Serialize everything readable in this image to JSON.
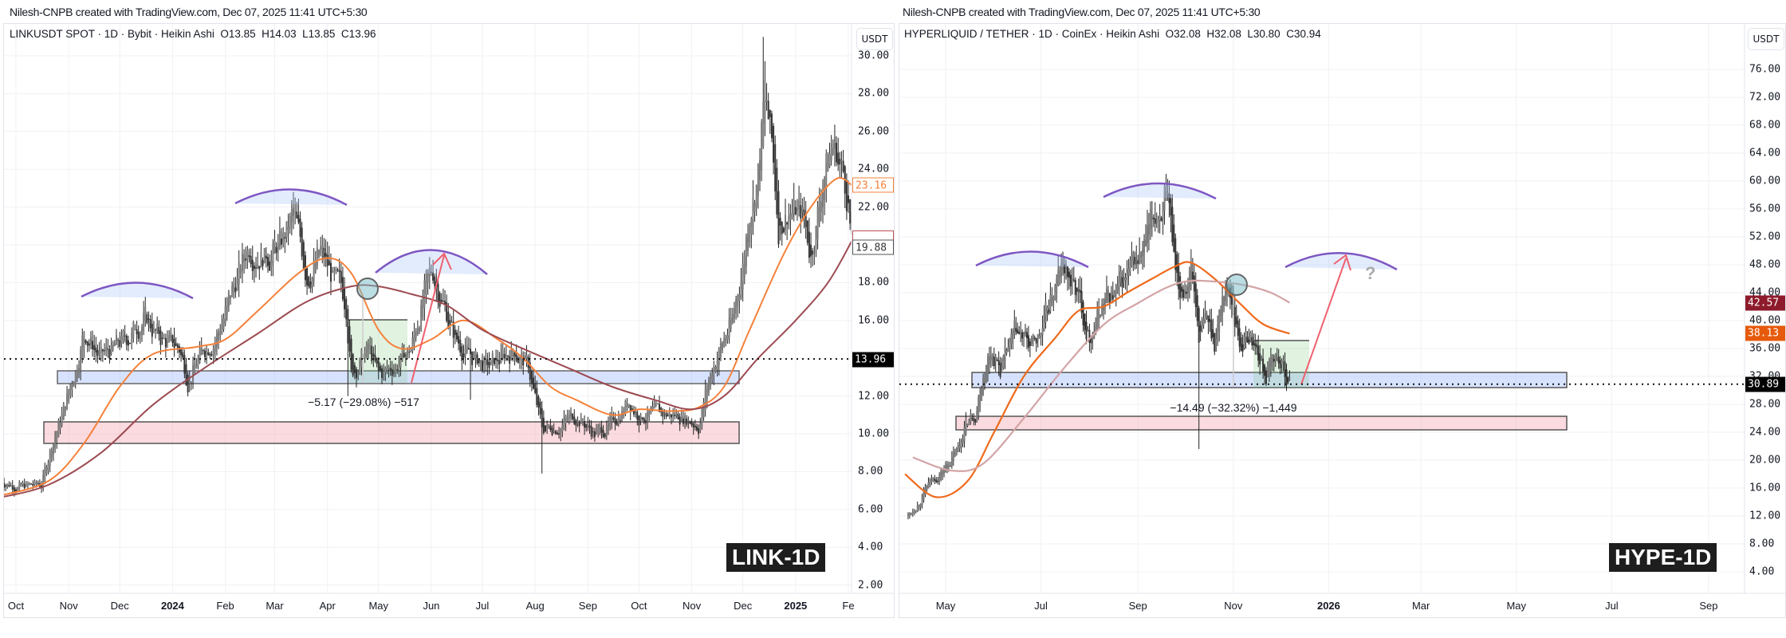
{
  "credit": "Nilesh-CNPB created with TradingView.com, Dec 07, 2025 11:41 UTC+5:30",
  "currency_button": "USDT",
  "chart_data": [
    {
      "type": "candlestick",
      "title": "LINKUSDT SPOT · 1D · Bybit · Heikin Ashi  O13.85  H14.03  L13.85  C13.96",
      "tag": "LINK-1D",
      "y_ticks": [
        "2.00",
        "4.00",
        "6.00",
        "8.00",
        "10.00",
        "12.00",
        "14.00",
        "16.00",
        "18.00",
        "20.00",
        "22.00",
        "24.00",
        "26.00",
        "28.00",
        "30.00"
      ],
      "y_tick_values": [
        2,
        4,
        6,
        8,
        10,
        12,
        14,
        16,
        18,
        20,
        22,
        24,
        26,
        28,
        30
      ],
      "ylim": [
        2,
        30
      ],
      "x_ticks": [
        {
          "label": "Oct",
          "date": "2023-10-01"
        },
        {
          "label": "Nov",
          "date": "2023-11-01"
        },
        {
          "label": "Dec",
          "date": "2023-12-01"
        },
        {
          "label": "2024",
          "date": "2024-01-01"
        },
        {
          "label": "Feb",
          "date": "2024-02-01"
        },
        {
          "label": "Mar",
          "date": "2024-03-01"
        },
        {
          "label": "Apr",
          "date": "2024-04-01"
        },
        {
          "label": "May",
          "date": "2024-05-01"
        },
        {
          "label": "Jun",
          "date": "2024-06-01"
        },
        {
          "label": "Jul",
          "date": "2024-07-01"
        },
        {
          "label": "Aug",
          "date": "2024-08-01"
        },
        {
          "label": "Sep",
          "date": "2024-09-01"
        },
        {
          "label": "Oct",
          "date": "2024-10-01"
        },
        {
          "label": "Nov",
          "date": "2024-11-01"
        },
        {
          "label": "Dec",
          "date": "2024-12-01"
        },
        {
          "label": "2025",
          "date": "2025-01-01"
        },
        {
          "label": "Fe",
          "date": "2025-02-01"
        }
      ],
      "close_path": [
        [
          "2023-09-22",
          7.5
        ],
        [
          "2023-10-05",
          7.2
        ],
        [
          "2023-10-16",
          7.3
        ],
        [
          "2023-10-22",
          9.5
        ],
        [
          "2023-10-28",
          11
        ],
        [
          "2023-11-05",
          13.5
        ],
        [
          "2023-11-10",
          15.5
        ],
        [
          "2023-11-20",
          14
        ],
        [
          "2023-12-05",
          15
        ],
        [
          "2023-12-15",
          16.2
        ],
        [
          "2023-12-25",
          15
        ],
        [
          "2024-01-05",
          14.5
        ],
        [
          "2024-01-10",
          13.0
        ],
        [
          "2024-01-20",
          14.5
        ],
        [
          "2024-01-28",
          15.5
        ],
        [
          "2024-02-05",
          17.5
        ],
        [
          "2024-02-15",
          20
        ],
        [
          "2024-02-25",
          19.5
        ],
        [
          "2024-03-05",
          20
        ],
        [
          "2024-03-12",
          21.5
        ],
        [
          "2024-03-20",
          18.5
        ],
        [
          "2024-03-28",
          19.5
        ],
        [
          "2024-04-05",
          18
        ],
        [
          "2024-04-12",
          17
        ],
        [
          "2024-04-15",
          13.2
        ],
        [
          "2024-04-25",
          14.5
        ],
        [
          "2024-05-01",
          13
        ],
        [
          "2024-05-10",
          13.6
        ],
        [
          "2024-05-20",
          14.5
        ],
        [
          "2024-05-28",
          17.5
        ],
        [
          "2024-06-02",
          18.5
        ],
        [
          "2024-06-08",
          17
        ],
        [
          "2024-06-15",
          15
        ],
        [
          "2024-06-25",
          14
        ],
        [
          "2024-07-05",
          13.5
        ],
        [
          "2024-07-20",
          14.5
        ],
        [
          "2024-07-28",
          13.5
        ],
        [
          "2024-08-05",
          10.2
        ],
        [
          "2024-08-15",
          10.5
        ],
        [
          "2024-08-25",
          11
        ],
        [
          "2024-09-05",
          10
        ],
        [
          "2024-09-15",
          10.5
        ],
        [
          "2024-09-25",
          11.8
        ],
        [
          "2024-10-01",
          11
        ],
        [
          "2024-10-15",
          11
        ],
        [
          "2024-10-25",
          11
        ],
        [
          "2024-11-05",
          10.5
        ],
        [
          "2024-11-10",
          12.5
        ],
        [
          "2024-11-15",
          14
        ],
        [
          "2024-11-25",
          16
        ],
        [
          "2024-12-01",
          19
        ],
        [
          "2024-12-05",
          22
        ],
        [
          "2024-12-10",
          24
        ],
        [
          "2024-12-14",
          28
        ],
        [
          "2024-12-18",
          25
        ],
        [
          "2024-12-22",
          21
        ],
        [
          "2024-12-28",
          22
        ],
        [
          "2025-01-05",
          21.5
        ],
        [
          "2025-01-10",
          19.5
        ],
        [
          "2025-01-18",
          24
        ],
        [
          "2025-01-23",
          25.5
        ],
        [
          "2025-01-28",
          24
        ],
        [
          "2025-02-01",
          22.5
        ],
        [
          "2025-02-03",
          19.88
        ]
      ],
      "wick_lows": [
        [
          "2024-04-13",
          12.0
        ],
        [
          "2024-08-05",
          7.9
        ],
        [
          "2024-06-24",
          11.8
        ]
      ],
      "wick_highs": [
        [
          "2024-03-12",
          22.8
        ],
        [
          "2024-12-13",
          31.0
        ]
      ],
      "volatility": 0.045,
      "series": [
        {
          "name": "MA fast",
          "color": "#f5813a",
          "last": "23.16",
          "points": [
            [
              "2023-09-20",
              6.7
            ],
            [
              "2023-10-20",
              7.5
            ],
            [
              "2023-11-10",
              9.5
            ],
            [
              "2023-12-01",
              12.5
            ],
            [
              "2023-12-20",
              14.2
            ],
            [
              "2024-01-15",
              14.6
            ],
            [
              "2024-02-01",
              15
            ],
            [
              "2024-02-20",
              16.5
            ],
            [
              "2024-03-15",
              18.5
            ],
            [
              "2024-04-01",
              19.3
            ],
            [
              "2024-04-15",
              18.5
            ],
            [
              "2024-05-01",
              15.5
            ],
            [
              "2024-05-15",
              14.5
            ],
            [
              "2024-06-01",
              15
            ],
            [
              "2024-06-20",
              16
            ],
            [
              "2024-07-10",
              15
            ],
            [
              "2024-07-25",
              14
            ],
            [
              "2024-08-10",
              12.5
            ],
            [
              "2024-08-25",
              11.8
            ],
            [
              "2024-09-15",
              11
            ],
            [
              "2024-10-01",
              11.3
            ],
            [
              "2024-10-20",
              11.2
            ],
            [
              "2024-11-05",
              11.4
            ],
            [
              "2024-11-20",
              12.5
            ],
            [
              "2024-12-05",
              15.5
            ],
            [
              "2024-12-25",
              19.5
            ],
            [
              "2025-01-10",
              22
            ],
            [
              "2025-01-25",
              23.5
            ],
            [
              "2025-02-03",
              23.16
            ]
          ]
        },
        {
          "name": "MA slow",
          "color": "#9c4a50",
          "last": "",
          "points": [
            [
              "2023-09-20",
              6.6
            ],
            [
              "2023-10-20",
              7.3
            ],
            [
              "2023-11-20",
              9.0
            ],
            [
              "2023-12-20",
              11.5
            ],
            [
              "2024-01-20",
              13.5
            ],
            [
              "2024-02-20",
              15.3
            ],
            [
              "2024-03-20",
              17
            ],
            [
              "2024-04-15",
              17.8
            ],
            [
              "2024-05-01",
              17.8
            ],
            [
              "2024-05-20",
              17.4
            ],
            [
              "2024-06-10",
              16.8
            ],
            [
              "2024-07-01",
              15.5
            ],
            [
              "2024-07-25",
              14.5
            ],
            [
              "2024-08-20",
              13.5
            ],
            [
              "2024-09-15",
              12.5
            ],
            [
              "2024-10-10",
              11.8
            ],
            [
              "2024-11-01",
              11.3
            ],
            [
              "2024-11-20",
              12
            ],
            [
              "2024-12-10",
              14
            ],
            [
              "2025-01-01",
              16
            ],
            [
              "2025-01-20",
              18
            ],
            [
              "2025-02-03",
              20.2
            ]
          ]
        }
      ],
      "last_price": "13.96",
      "last_bar_label": "19.88",
      "measure": "−5.17 (−29.08%) −517"
    },
    {
      "type": "candlestick",
      "title": "HYPERLIQUID / TETHER · 1D · CoinEx · Heikin Ashi  O32.08  H32.08  L30.80  C30.94",
      "tag": "HYPE-1D",
      "y_ticks": [
        "4.00",
        "8.00",
        "12.00",
        "16.00",
        "20.00",
        "24.00",
        "28.00",
        "32.00",
        "36.00",
        "40.00",
        "44.00",
        "48.00",
        "52.00",
        "56.00",
        "60.00",
        "64.00",
        "68.00",
        "72.00",
        "76.00"
      ],
      "y_tick_values": [
        4,
        8,
        12,
        16,
        20,
        24,
        28,
        32,
        36,
        40,
        44,
        48,
        52,
        56,
        60,
        64,
        68,
        72,
        76
      ],
      "ylim": [
        4,
        76
      ],
      "x_ticks": [
        {
          "label": "May",
          "date": "2025-05-01"
        },
        {
          "label": "Jul",
          "date": "2025-07-01"
        },
        {
          "label": "Sep",
          "date": "2025-09-01"
        },
        {
          "label": "Nov",
          "date": "2025-11-01"
        },
        {
          "label": "2026",
          "date": "2026-01-01"
        },
        {
          "label": "Mar",
          "date": "2026-03-01"
        },
        {
          "label": "May",
          "date": "2026-05-01"
        },
        {
          "label": "Jul",
          "date": "2026-07-01"
        },
        {
          "label": "Sep",
          "date": "2026-09-01"
        }
      ],
      "close_path": [
        [
          "2025-04-07",
          12
        ],
        [
          "2025-04-12",
          13.5
        ],
        [
          "2025-04-20",
          16.5
        ],
        [
          "2025-05-01",
          19
        ],
        [
          "2025-05-10",
          22
        ],
        [
          "2025-05-13",
          25
        ],
        [
          "2025-05-20",
          27
        ],
        [
          "2025-05-25",
          33
        ],
        [
          "2025-05-30",
          36
        ],
        [
          "2025-06-05",
          33
        ],
        [
          "2025-06-15",
          38
        ],
        [
          "2025-06-25",
          36
        ],
        [
          "2025-07-01",
          38
        ],
        [
          "2025-07-10",
          45
        ],
        [
          "2025-07-15",
          47.5
        ],
        [
          "2025-07-25",
          43
        ],
        [
          "2025-08-01",
          38
        ],
        [
          "2025-08-10",
          43
        ],
        [
          "2025-08-20",
          44
        ],
        [
          "2025-08-28",
          47
        ],
        [
          "2025-09-05",
          50
        ],
        [
          "2025-09-12",
          55
        ],
        [
          "2025-09-18",
          57.5
        ],
        [
          "2025-09-22",
          52
        ],
        [
          "2025-09-28",
          45
        ],
        [
          "2025-10-05",
          48
        ],
        [
          "2025-10-10",
          38
        ],
        [
          "2025-10-15",
          40
        ],
        [
          "2025-10-20",
          37
        ],
        [
          "2025-10-27",
          46
        ],
        [
          "2025-11-01",
          42
        ],
        [
          "2025-11-05",
          37
        ],
        [
          "2025-11-12",
          38
        ],
        [
          "2025-11-17",
          35
        ],
        [
          "2025-11-22",
          32
        ],
        [
          "2025-11-28",
          35
        ],
        [
          "2025-12-03",
          33
        ],
        [
          "2025-12-07",
          30.94
        ]
      ],
      "wick_lows": [
        [
          "2025-10-10",
          21.6
        ]
      ],
      "wick_highs": [
        [
          "2025-09-18",
          59.6
        ]
      ],
      "volatility": 0.05,
      "series": [
        {
          "name": "MA fast",
          "color": "#ef6a1c",
          "last": "38.13",
          "points": [
            [
              "2025-04-05",
              18
            ],
            [
              "2025-04-25",
              14.7
            ],
            [
              "2025-05-15",
              17
            ],
            [
              "2025-06-01",
              24
            ],
            [
              "2025-06-20",
              32
            ],
            [
              "2025-07-10",
              37.5
            ],
            [
              "2025-07-25",
              41.4
            ],
            [
              "2025-08-10",
              42
            ],
            [
              "2025-08-25",
              44
            ],
            [
              "2025-09-10",
              46
            ],
            [
              "2025-09-25",
              47.8
            ],
            [
              "2025-10-05",
              48.3
            ],
            [
              "2025-10-20",
              46
            ],
            [
              "2025-11-05",
              42.5
            ],
            [
              "2025-11-20",
              39.5
            ],
            [
              "2025-12-07",
              38.13
            ]
          ]
        },
        {
          "name": "MA slow",
          "color": "#d3a4a6",
          "last": "42.57",
          "points": [
            [
              "2025-04-10",
              20.4
            ],
            [
              "2025-05-05",
              18.5
            ],
            [
              "2025-05-25",
              19.5
            ],
            [
              "2025-06-20",
              26
            ],
            [
              "2025-07-15",
              33
            ],
            [
              "2025-08-10",
              39.4
            ],
            [
              "2025-09-01",
              42.5
            ],
            [
              "2025-09-20",
              44.8
            ],
            [
              "2025-10-05",
              45.7
            ],
            [
              "2025-10-25",
              45.5
            ],
            [
              "2025-11-10",
              45
            ],
            [
              "2025-11-25",
              44
            ],
            [
              "2025-12-07",
              42.57
            ]
          ]
        }
      ],
      "last_price": "30.89",
      "measure": "−14.49 (−32.32%) −1,449",
      "target_mark": "?"
    }
  ]
}
